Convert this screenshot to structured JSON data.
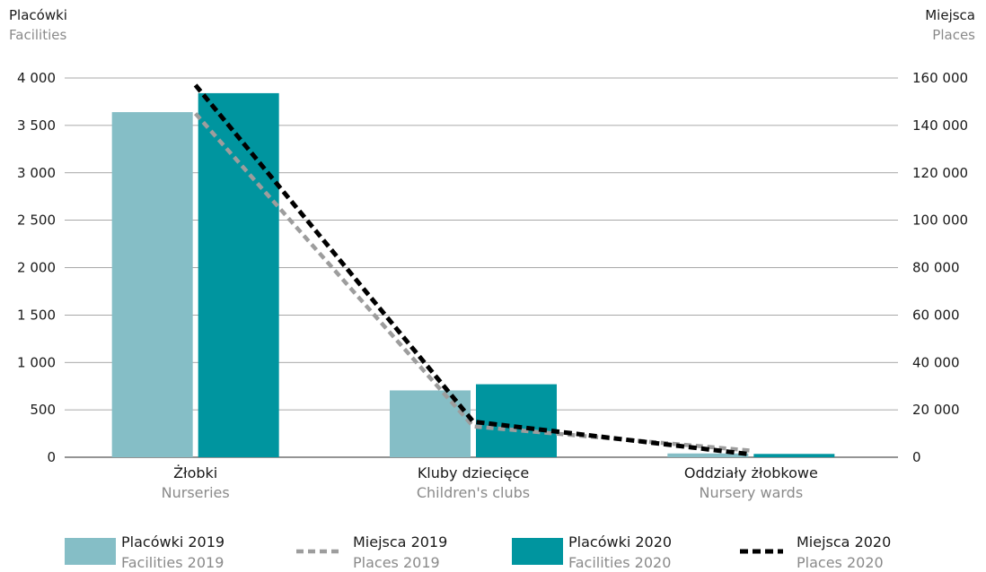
{
  "chart_data": {
    "type": "bar",
    "left_axis_title": {
      "pl": "Placówki",
      "en": "Facilities"
    },
    "right_axis_title": {
      "pl": "Miejsca",
      "en": "Places"
    },
    "categories": [
      {
        "pl": "Żłobki",
        "en": "Nurseries"
      },
      {
        "pl": "Kluby dziecięce",
        "en": "Children's clubs"
      },
      {
        "pl": "Oddziały żłobkowe",
        "en": "Nursery wards"
      }
    ],
    "left_axis": {
      "ylim": [
        0,
        4000
      ],
      "ticks": [
        0,
        500,
        1000,
        1500,
        2000,
        2500,
        3000,
        3500,
        4000
      ],
      "tick_labels": [
        "0",
        "500",
        "1 000",
        "1 500",
        "2 000",
        "2 500",
        "3 000",
        "3 500",
        "4 000"
      ]
    },
    "right_axis": {
      "ylim": [
        0,
        160000
      ],
      "ticks": [
        0,
        20000,
        40000,
        60000,
        80000,
        100000,
        120000,
        140000,
        160000
      ],
      "tick_labels": [
        "0",
        "20 000",
        "40 000",
        "60 000",
        "80 000",
        "100 000",
        "120 000",
        "140 000",
        "160 000"
      ]
    },
    "grid": "horizontal",
    "legend_position": "bottom",
    "bar_series": [
      {
        "key": "facilities_2019",
        "name_pl": "Placówki 2019",
        "name_en": "Facilities 2019",
        "color": "#85bec6",
        "values": [
          3640,
          705,
          40
        ]
      },
      {
        "key": "facilities_2020",
        "name_pl": "Placówki 2020",
        "name_en": "Facilities 2020",
        "color": "#00959f",
        "values": [
          3840,
          770,
          35
        ]
      }
    ],
    "line_series": [
      {
        "key": "places_2019",
        "name_pl": "Miejsca 2019",
        "name_en": "Places 2019",
        "color": "#9d9d9d",
        "style": "dashed",
        "axis": "right",
        "values": [
          145000,
          13000,
          2800
        ]
      },
      {
        "key": "places_2020",
        "name_pl": "Miejsca 2020",
        "name_en": "Places 2020",
        "color": "#000000",
        "style": "dashed",
        "axis": "right",
        "values": [
          157000,
          15000,
          1200
        ]
      }
    ]
  }
}
